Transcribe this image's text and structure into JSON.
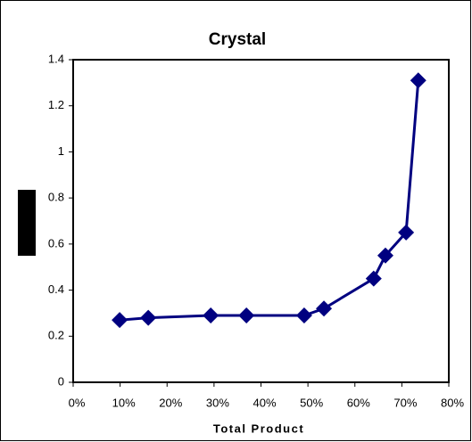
{
  "chart_data": {
    "type": "line",
    "title": "Crystal",
    "x_label": "Total Product",
    "x": [
      9.9,
      16.0,
      29.3,
      36.9,
      49.2,
      53.4,
      64.0,
      66.5,
      70.9,
      73.5
    ],
    "values": [
      0.27,
      0.28,
      0.29,
      0.29,
      0.29,
      0.32,
      0.45,
      0.55,
      0.65,
      1.31
    ],
    "color": "#000080",
    "xlim": [
      0,
      80
    ],
    "xticks": [
      {
        "value": 0,
        "label": "0%"
      },
      {
        "value": 10,
        "label": "10%"
      },
      {
        "value": 20,
        "label": "20%"
      },
      {
        "value": 30,
        "label": "30%"
      },
      {
        "value": 40,
        "label": "40%"
      },
      {
        "value": 50,
        "label": "50%"
      },
      {
        "value": 60,
        "label": "60%"
      },
      {
        "value": 70,
        "label": "70%"
      },
      {
        "value": 80,
        "label": "80%"
      }
    ],
    "ylim": [
      0,
      1.4
    ],
    "yticks": [
      0,
      0.2,
      0.4,
      0.6,
      0.8,
      1,
      1.2,
      1.4
    ],
    "grid": false
  }
}
